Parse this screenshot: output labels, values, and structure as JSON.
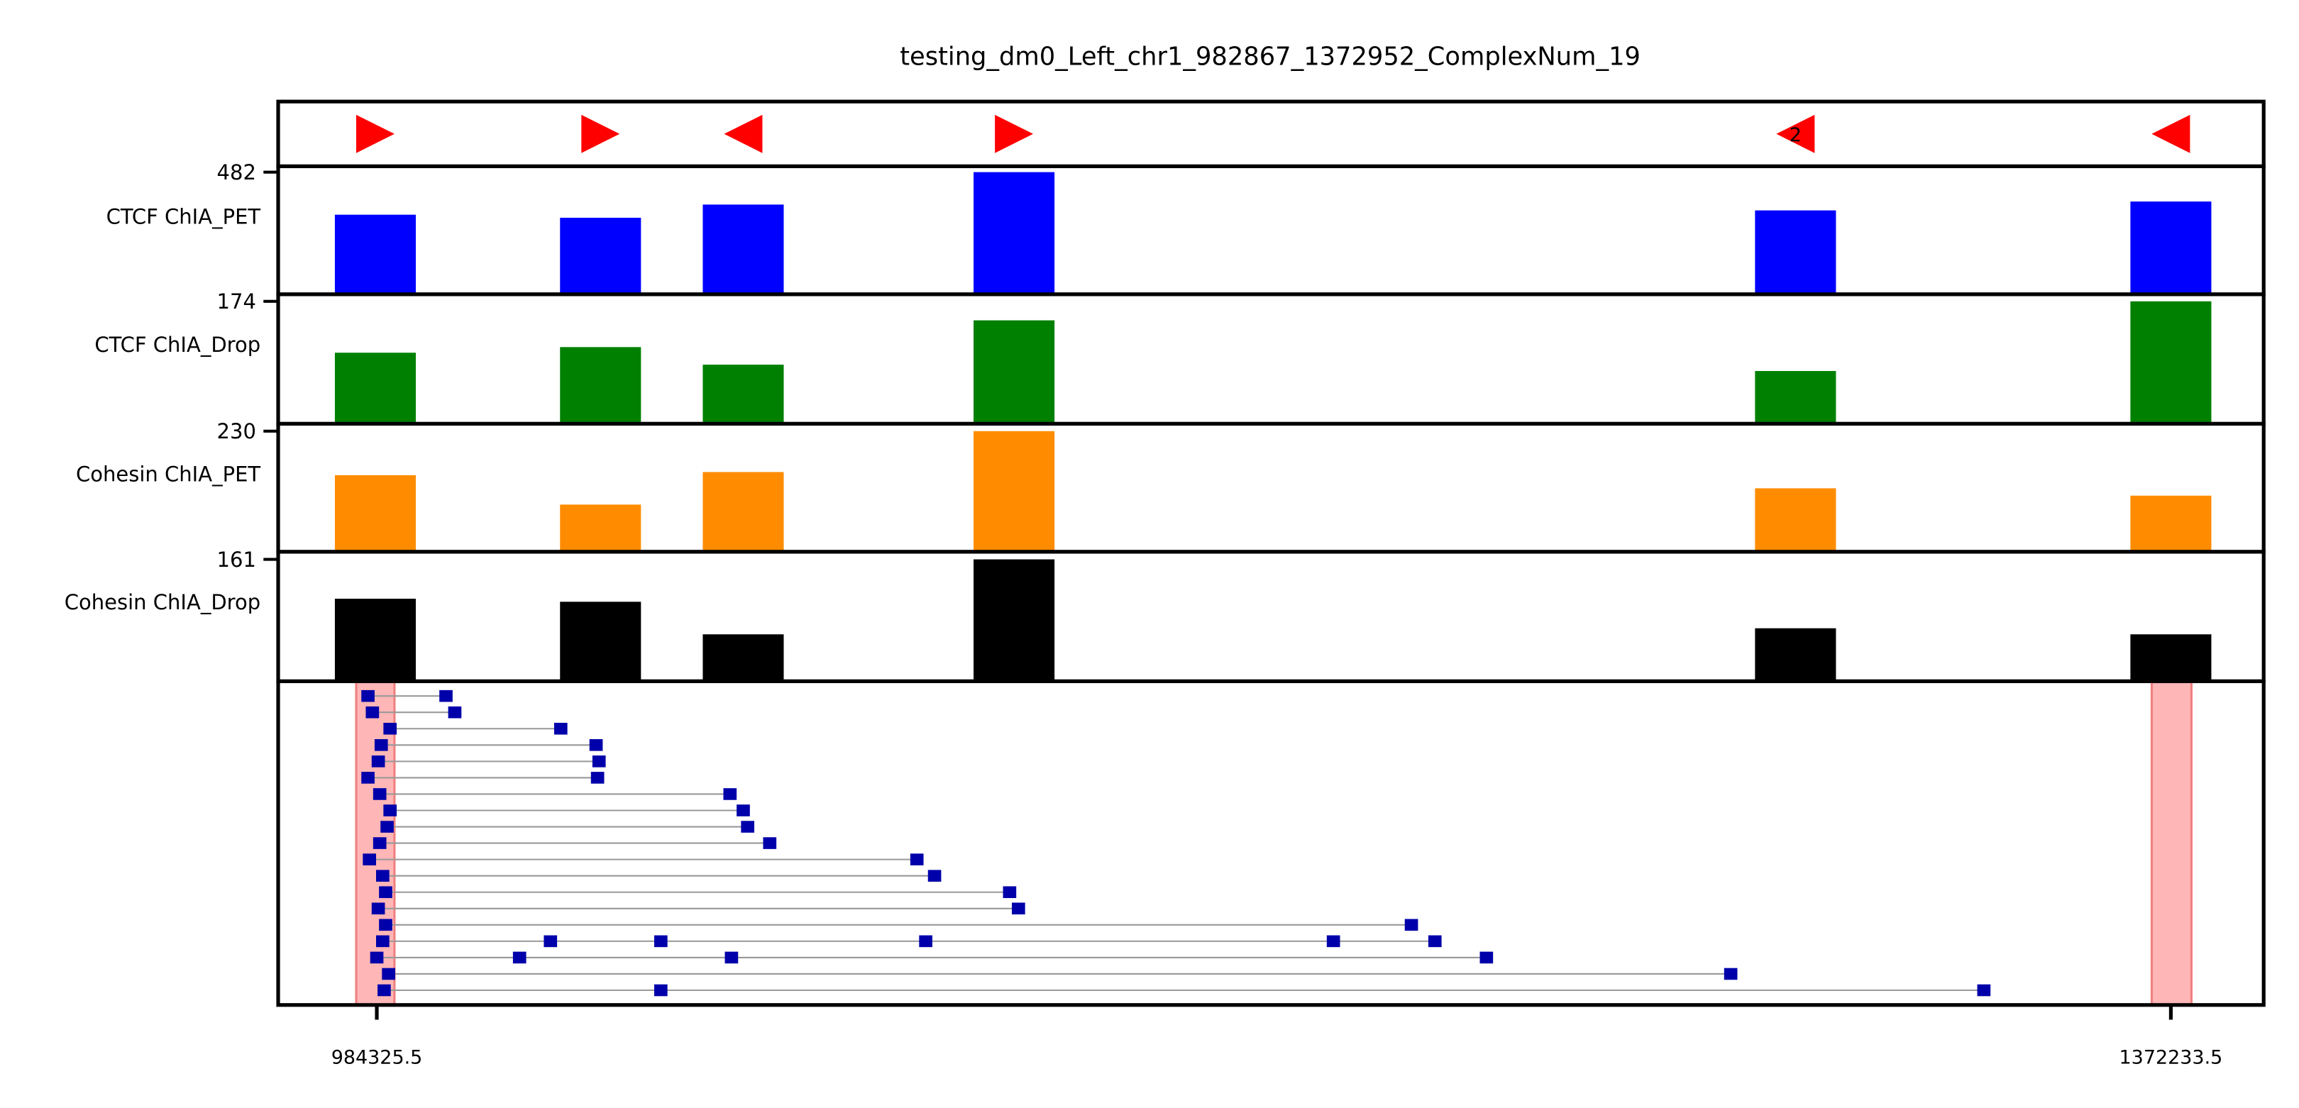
{
  "chart_data": {
    "type": "genome_tracks",
    "title": "testing_dm0_Left_chr1_982867_1372952_ComplexNum_19",
    "xlim": [
      963000,
      1392300
    ],
    "xticks": [
      984325.5,
      1372233.5
    ],
    "peaks": {
      "start": [
        975257,
        1023942,
        1054808,
        1113356,
        1282320,
        1363483
      ],
      "end": [
        992757,
        1041442,
        1072308,
        1130856,
        1299820,
        1380983
      ]
    },
    "motifs": {
      "x": [
        984007,
        1032692,
        1063558,
        1122106,
        1291070,
        1372233.5
      ],
      "direction": [
        "right",
        "right",
        "left",
        "right",
        "left",
        "left"
      ],
      "labels": [
        null,
        null,
        null,
        null,
        "2",
        null
      ],
      "color": "#ff0000"
    },
    "tracks": [
      {
        "name": "CTCF ChIA_PET",
        "color": "#0000ff",
        "ylim": [
          0,
          505
        ],
        "yticks": [
          482
        ],
        "values": [
          314,
          302,
          354,
          482,
          331,
          366
        ]
      },
      {
        "name": "CTCF ChIA_Drop",
        "color": "#008000",
        "ylim": [
          0,
          184
        ],
        "yticks": [
          174
        ],
        "values": [
          101,
          109,
          84,
          147,
          75,
          174
        ]
      },
      {
        "name": "Cohesin ChIA_PET",
        "color": "#ff8c00",
        "ylim": [
          0,
          244
        ],
        "yticks": [
          230
        ],
        "values": [
          146,
          90,
          152,
          230,
          121,
          107
        ]
      },
      {
        "name": "Cohesin ChIA_Drop",
        "color": "#000000",
        "ylim": [
          0,
          171
        ],
        "yticks": [
          161
        ],
        "values": [
          109,
          105,
          62,
          161,
          70,
          62
        ]
      }
    ],
    "complexes": {
      "anchor_color": "#ffb6b6",
      "fragment_color": "#0000aa",
      "line_color": "#999999",
      "anchors": [
        [
          979871,
          988144
        ],
        [
          1368097,
          1376688
        ]
      ],
      "rows": [
        [
          982416,
          999281
        ],
        [
          983371,
          1001190
        ],
        [
          987189,
          1024100
        ],
        [
          985280,
          1031737
        ],
        [
          984644,
          1032374
        ],
        [
          982416,
          1032056
        ],
        [
          984962,
          1060694
        ],
        [
          987189,
          1063557
        ],
        [
          986553,
          1064512
        ],
        [
          984962,
          1069285
        ],
        [
          982735,
          1101105
        ],
        [
          985598,
          1104923
        ],
        [
          986235,
          1121152
        ],
        [
          984644,
          1123061
        ],
        [
          986235,
          1208020
        ],
        [
          985598,
          1021873,
          1045738,
          1103014,
          1191156,
          1213111
        ],
        [
          984326,
          1015191,
          1061012,
          1224248
        ],
        [
          986871,
          1277069
        ],
        [
          985917,
          1045738,
          1331800
        ]
      ]
    }
  }
}
